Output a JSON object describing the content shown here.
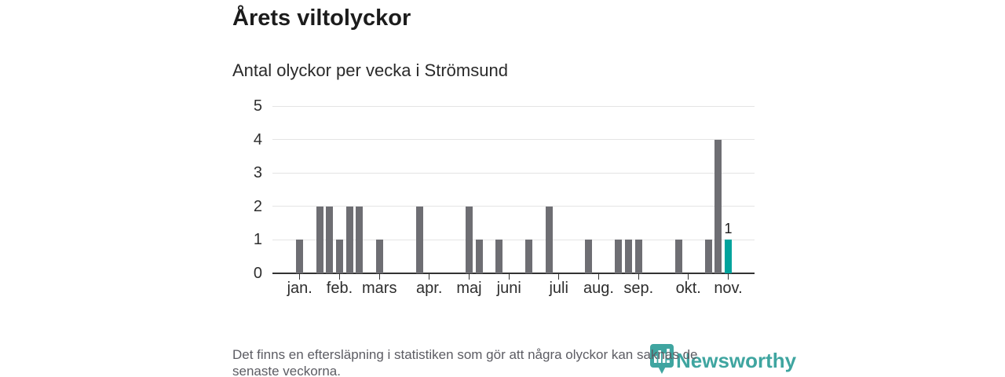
{
  "header": {
    "title": "Årets viltolyckor",
    "subtitle": "Antal olyckor per vecka i Strömsund"
  },
  "footer": {
    "note_lines": [
      "Det finns en eftersläpning i statistiken som gör att några olyckor kan saknas de",
      "senaste veckorna."
    ],
    "brand": "Newsworthy"
  },
  "chart_data": {
    "type": "bar",
    "title": "Årets viltolyckor",
    "subtitle": "Antal olyckor per vecka i Strömsund",
    "ylabel": "Antal olyckor per vecka",
    "ylim": [
      0,
      5
    ],
    "y_ticks": [
      0,
      1,
      2,
      3,
      4,
      5
    ],
    "grid": true,
    "x_unit": "week",
    "weeks": [
      1,
      0,
      2,
      2,
      1,
      2,
      2,
      0,
      1,
      0,
      0,
      0,
      2,
      0,
      0,
      0,
      0,
      2,
      1,
      0,
      1,
      0,
      0,
      1,
      0,
      2,
      0,
      0,
      0,
      1,
      0,
      0,
      1,
      1,
      1,
      0,
      0,
      0,
      1,
      0,
      0,
      1,
      4,
      1
    ],
    "highlight_index": 43,
    "highlight_label": "1",
    "month_ticks": [
      {
        "label": "jan.",
        "week": 0
      },
      {
        "label": "feb.",
        "week": 4
      },
      {
        "label": "mars",
        "week": 8
      },
      {
        "label": "apr.",
        "week": 13
      },
      {
        "label": "maj",
        "week": 17
      },
      {
        "label": "juni",
        "week": 21
      },
      {
        "label": "juli",
        "week": 26
      },
      {
        "label": "aug.",
        "week": 30
      },
      {
        "label": "sep.",
        "week": 34
      },
      {
        "label": "okt.",
        "week": 39
      },
      {
        "label": "nov.",
        "week": 43
      }
    ],
    "colors": {
      "bar": "#6e6e73",
      "highlight": "#00a39c",
      "grid": "#e4e4e4",
      "axis": "#333333",
      "brand": "#2f9e98"
    }
  }
}
